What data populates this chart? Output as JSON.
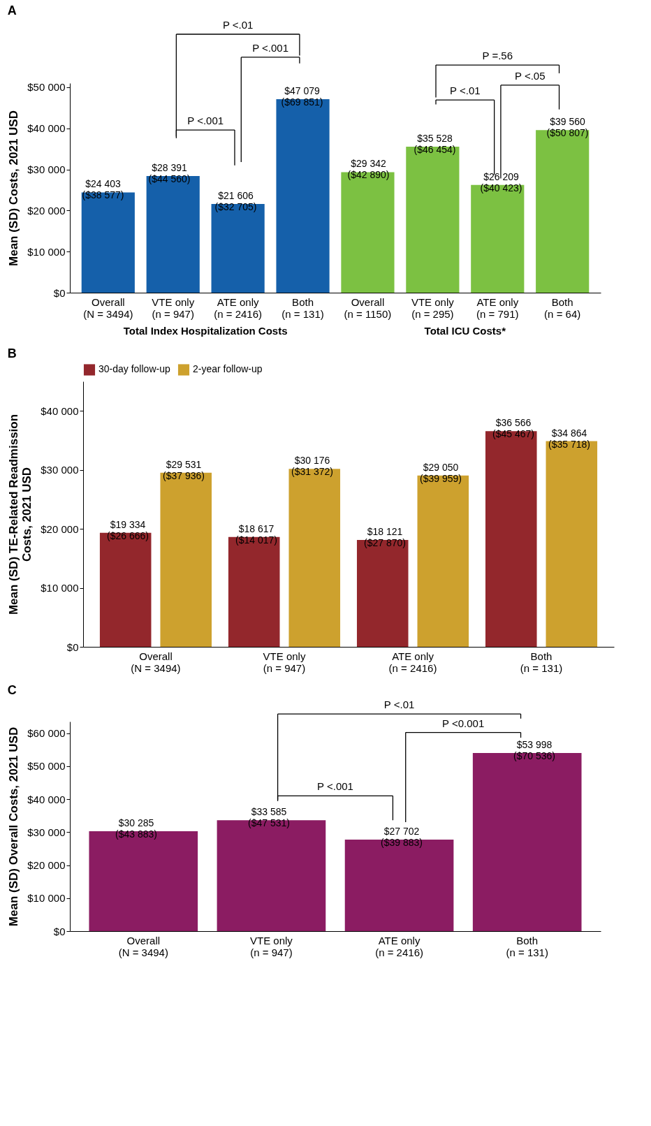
{
  "chart_data": [
    {
      "type": "bar",
      "title": "A",
      "ylabel": "Mean (SD) Costs, 2021 USD",
      "categories": [
        "Overall (N = 3494)",
        "VTE only (n = 947)",
        "ATE only (n = 2416)",
        "Both (n = 131)",
        "Overall (n = 1150)",
        "VTE only (n = 295)",
        "ATE only (n = 791)",
        "Both (n = 64)"
      ],
      "values": [
        24403,
        28391,
        21606,
        47079,
        29342,
        35528,
        26209,
        39560
      ],
      "colors": [
        "#1560aa",
        "#1560aa",
        "#1560aa",
        "#1560aa",
        "#7cc142",
        "#7cc142",
        "#7cc142",
        "#7cc142"
      ],
      "value_labels": [
        "$24 403 ($38 577)",
        "$28 391 ($44 560)",
        "$21 606 ($32 705)",
        "$47 079 ($69 851)",
        "$29 342 ($42 890)",
        "$35 528 ($46 454)",
        "$26 209 ($40 423)",
        "$39 560 ($50 807)"
      ],
      "ylim": [
        0,
        51000
      ],
      "yticks": [
        {
          "value": 0,
          "label": "$0"
        },
        {
          "value": 10000,
          "label": "$10 000"
        },
        {
          "value": 20000,
          "label": "$20 000"
        },
        {
          "value": 30000,
          "label": "$30 000"
        },
        {
          "value": 40000,
          "label": "$40 000"
        },
        {
          "value": 50000,
          "label": "$50 000"
        }
      ],
      "annotations": [
        "Total Index Hospitalization Costs",
        "Total ICU Costs*",
        "P <.01",
        "P <.001",
        "P <.001",
        "P =.56",
        "P <.01",
        "P <.05"
      ]
    },
    {
      "type": "bar",
      "title": "B",
      "ylabel": "Mean (SD) TE-Related Readmission Costs, 2021 USD",
      "categories": [
        "Overall (N = 3494)",
        "VTE only (n = 947)",
        "ATE only (n = 2416)",
        "Both (n = 131)"
      ],
      "series": [
        {
          "name": "30-day follow-up",
          "color": "#93272c",
          "values": [
            19334,
            18617,
            18121,
            36566
          ],
          "value_labels": [
            "$19 334 ($26 666)",
            "$18 617 ($14 017)",
            "$18 121 ($27 870)",
            "$36 566 ($45 467)"
          ]
        },
        {
          "name": "2-year follow-up",
          "color": "#cda12e",
          "values": [
            29531,
            30176,
            29050,
            34864
          ],
          "value_labels": [
            "$29 531 ($37 936)",
            "$30 176 ($31 372)",
            "$29 050 ($39 959)",
            "$34 864 ($35 718)"
          ]
        }
      ],
      "ylim": [
        0,
        45000
      ],
      "yticks": [
        {
          "value": 0,
          "label": "$0"
        },
        {
          "value": 10000,
          "label": "$10 000"
        },
        {
          "value": 20000,
          "label": "$20 000"
        },
        {
          "value": 30000,
          "label": "$30 000"
        },
        {
          "value": 40000,
          "label": "$40 000"
        }
      ],
      "legend": "top"
    },
    {
      "type": "bar",
      "title": "C",
      "ylabel": "Mean (SD) Overall Costs, 2021 USD",
      "categories": [
        "Overall (N = 3494)",
        "VTE only (n = 947)",
        "ATE only (n = 2416)",
        "Both (n = 131)"
      ],
      "values": [
        30285,
        33585,
        27702,
        53998
      ],
      "color": "#8b1c62",
      "value_labels": [
        "$30 285 ($43 883)",
        "$33 585 ($47 531)",
        "$27 702 ($39 883)",
        "$53 998 ($70 536)"
      ],
      "ylim": [
        0,
        63500
      ],
      "yticks": [
        {
          "value": 0,
          "label": "$0"
        },
        {
          "value": 10000,
          "label": "$10 000"
        },
        {
          "value": 20000,
          "label": "$20 000"
        },
        {
          "value": 30000,
          "label": "$30 000"
        },
        {
          "value": 40000,
          "label": "$40 000"
        },
        {
          "value": 50000,
          "label": "$50 000"
        },
        {
          "value": 60000,
          "label": "$60 000"
        }
      ],
      "annotations": [
        "P <.01",
        "P <0.001",
        "P <.001"
      ]
    }
  ]
}
